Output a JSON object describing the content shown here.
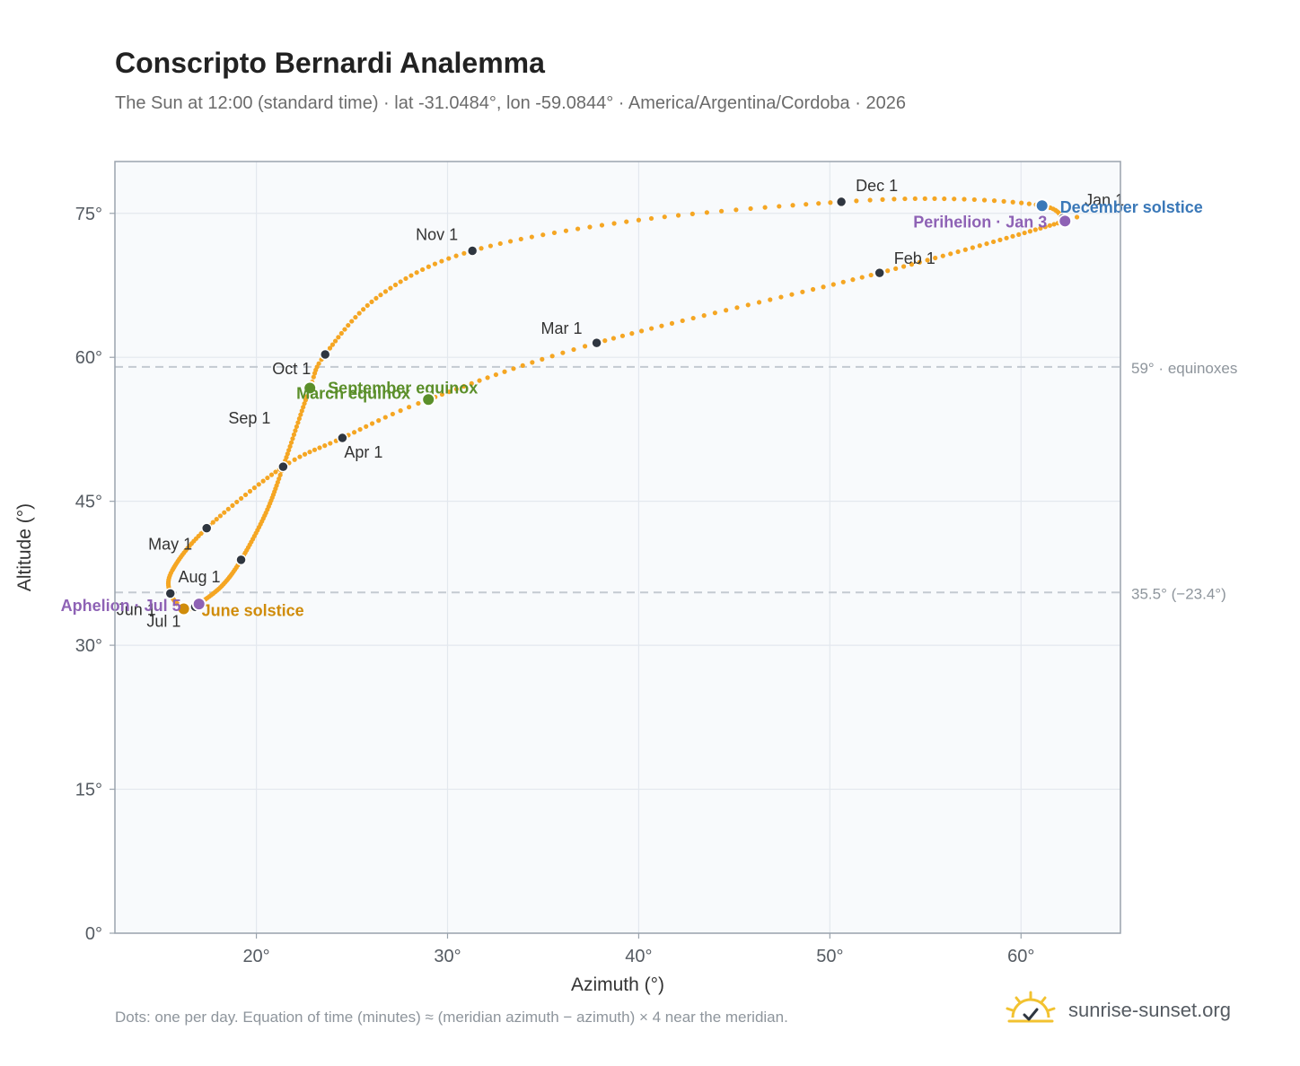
{
  "title": "Conscripto Bernardi Analemma",
  "subtitle": "The Sun at 12:00 (standard time) · lat -31.0484°, lon -59.0844° · America/Argentina/Cordoba · 2026",
  "footnote": "Dots: one per day. Equation of time (minutes) ≈ (meridian azimuth − azimuth) × 4 near the meridian.",
  "brand": {
    "name": "sunrise-sunset.org",
    "icon": "sun-checkmark-icon"
  },
  "chart_data": {
    "type": "scatter",
    "xlabel": "Azimuth (°)",
    "ylabel": "Altitude (°)",
    "xlim": [
      12.6,
      65.2
    ],
    "ylim": [
      0,
      80.4
    ],
    "xticks": [
      20,
      30,
      40,
      50,
      60
    ],
    "xtick_labels": [
      "20°",
      "30°",
      "40°",
      "50°",
      "60°"
    ],
    "yticks": [
      0,
      15,
      30,
      45,
      60,
      75
    ],
    "ytick_labels": [
      "0°",
      "15°",
      "30°",
      "45°",
      "60°",
      "75°"
    ],
    "grid": true,
    "colors": {
      "path": "#f5a623",
      "month_marker": "#2f3640",
      "solstice_june": "#d08c0b",
      "solstice_december": "#3a78b8",
      "equinox": "#5b8f2a",
      "apsis": "#8e62b5",
      "reference_line": "#c4cad1",
      "plot_background": "#f8fafc",
      "frame": "#9aa3ad"
    },
    "reference_lines": [
      {
        "y": 59.0,
        "label": "59° · equinoxes"
      },
      {
        "y": 35.5,
        "label": "35.5° (−23.4°)"
      }
    ],
    "anchors": [
      {
        "doy": 1,
        "x": 62.2,
        "y": 74.5
      },
      {
        "doy": 3,
        "x": 62.3,
        "y": 74.2
      },
      {
        "doy": 32,
        "x": 52.6,
        "y": 68.8
      },
      {
        "doy": 60,
        "x": 37.8,
        "y": 61.5
      },
      {
        "doy": 79,
        "x": 29.0,
        "y": 55.6
      },
      {
        "doy": 91,
        "x": 24.5,
        "y": 51.6
      },
      {
        "doy": 102,
        "x": 21.4,
        "y": 48.6
      },
      {
        "doy": 121,
        "x": 17.4,
        "y": 42.2
      },
      {
        "doy": 140,
        "x": 15.6,
        "y": 37.8
      },
      {
        "doy": 152,
        "x": 15.5,
        "y": 35.4
      },
      {
        "doy": 172,
        "x": 16.2,
        "y": 33.8
      },
      {
        "doy": 182,
        "x": 16.8,
        "y": 34.0
      },
      {
        "doy": 186,
        "x": 17.0,
        "y": 34.3
      },
      {
        "doy": 200,
        "x": 18.2,
        "y": 36.2
      },
      {
        "doy": 213,
        "x": 19.2,
        "y": 38.9
      },
      {
        "doy": 230,
        "x": 20.5,
        "y": 43.8
      },
      {
        "doy": 244,
        "x": 21.4,
        "y": 48.6
      },
      {
        "doy": 266,
        "x": 22.8,
        "y": 56.8
      },
      {
        "doy": 274,
        "x": 23.6,
        "y": 60.3
      },
      {
        "doy": 290,
        "x": 26.5,
        "y": 66.5
      },
      {
        "doy": 305,
        "x": 31.3,
        "y": 71.1
      },
      {
        "doy": 320,
        "x": 40.0,
        "y": 74.3
      },
      {
        "doy": 335,
        "x": 50.6,
        "y": 76.2
      },
      {
        "doy": 345,
        "x": 56.5,
        "y": 76.5
      },
      {
        "doy": 355,
        "x": 61.1,
        "y": 75.8
      },
      {
        "doy": 366,
        "x": 62.2,
        "y": 74.5
      }
    ],
    "month_markers": [
      {
        "label": "Jan 1",
        "x": 62.2,
        "y": 74.5
      },
      {
        "label": "Feb 1",
        "x": 52.6,
        "y": 68.8
      },
      {
        "label": "Mar 1",
        "x": 37.8,
        "y": 61.5
      },
      {
        "label": "Apr 1",
        "x": 24.5,
        "y": 51.6
      },
      {
        "label": "May 1",
        "x": 17.4,
        "y": 42.2
      },
      {
        "label": "Jun 1",
        "x": 15.5,
        "y": 35.4
      },
      {
        "label": "Jul 1",
        "x": 16.8,
        "y": 34.0
      },
      {
        "label": "Aug 1",
        "x": 19.2,
        "y": 38.9
      },
      {
        "label": "Sep 1",
        "x": 21.4,
        "y": 48.6
      },
      {
        "label": "Oct 1",
        "x": 23.6,
        "y": 60.3
      },
      {
        "label": "Nov 1",
        "x": 31.3,
        "y": 71.1
      },
      {
        "label": "Dec 1",
        "x": 50.6,
        "y": 76.2
      }
    ],
    "events": [
      {
        "label": "December solstice",
        "x": 61.1,
        "y": 75.8,
        "kind": "solstice_december"
      },
      {
        "label": "Perihelion · Jan 3",
        "x": 62.3,
        "y": 74.2,
        "kind": "apsis"
      },
      {
        "label": "September equinox",
        "x": 22.8,
        "y": 56.8,
        "kind": "equinox"
      },
      {
        "label": "March equinox",
        "x": 29.0,
        "y": 55.6,
        "kind": "equinox"
      },
      {
        "label": "June solstice",
        "x": 16.2,
        "y": 33.8,
        "kind": "solstice_june"
      },
      {
        "label": "Aphelion · Jul 5",
        "x": 17.0,
        "y": 34.3,
        "kind": "apsis"
      }
    ]
  }
}
